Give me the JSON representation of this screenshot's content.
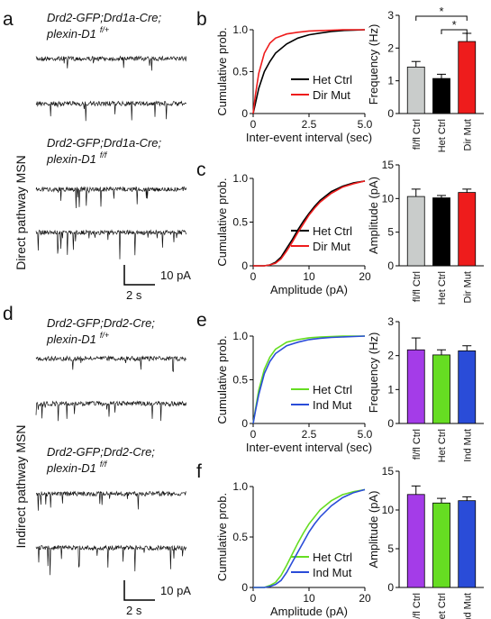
{
  "panel_letters": {
    "a": "a",
    "b": "b",
    "c": "c",
    "d": "d",
    "e": "e",
    "f": "f"
  },
  "side_labels": {
    "top": "Direct pathway MSN",
    "bottom": "Indirect pathway MSN"
  },
  "genotypes": {
    "a1_line1": "Drd2-GFP;Drd1a-Cre;",
    "a1_line2": "plexin-D1",
    "a1_sup": "f/+",
    "a2_line1": "Drd2-GFP;Drd1a-Cre;",
    "a2_line2": "plexin-D1",
    "a2_sup": "f/f",
    "d1_line1": "Drd2-GFP;Drd2-Cre;",
    "d1_line2": "plexin-D1",
    "d1_sup": "f/+",
    "d2_line1": "Drd2-GFP;Drd2-Cre;",
    "d2_line2": "plexin-D1",
    "d2_sup": "f/f"
  },
  "scalebars": {
    "amp": "10 pA",
    "time": "2 s"
  },
  "colors": {
    "het_ctrl_top": "#000000",
    "dir_mut": "#ee1c1c",
    "het_ctrl_bottom": "#66dd22",
    "ind_mut": "#2a4cd8",
    "flfl_top": "#c9cccb",
    "flfl_bottom": "#a43ce8"
  },
  "chart_data": [
    {
      "id": "b_cdf",
      "type": "line",
      "ylabel": "Cumulative prob.",
      "xlabel": "Inter-event interval (sec)",
      "xlim": [
        0,
        5
      ],
      "ylim": [
        0,
        1
      ],
      "xticks": [
        "0",
        "2.5",
        "5.0"
      ],
      "yticks": [
        "0",
        "0.5",
        "1.0"
      ],
      "series": [
        {
          "name": "Het Ctrl",
          "color": "#000000",
          "x": [
            0,
            0.1,
            0.25,
            0.5,
            0.75,
            1,
            1.5,
            2,
            2.5,
            3,
            3.5,
            4,
            4.5,
            5
          ],
          "y": [
            0,
            0.12,
            0.3,
            0.5,
            0.62,
            0.72,
            0.83,
            0.9,
            0.94,
            0.96,
            0.98,
            0.99,
            0.995,
            1
          ]
        },
        {
          "name": "Dir Mut",
          "color": "#ee1c1c",
          "x": [
            0,
            0.1,
            0.25,
            0.5,
            0.75,
            1,
            1.5,
            2,
            2.5,
            3,
            3.5,
            4,
            4.5,
            5
          ],
          "y": [
            0,
            0.22,
            0.48,
            0.72,
            0.84,
            0.9,
            0.95,
            0.97,
            0.985,
            0.99,
            0.995,
            1,
            1,
            1
          ]
        }
      ]
    },
    {
      "id": "b_bar",
      "type": "bar",
      "ylabel": "Frequency (Hz)",
      "ylim": [
        0,
        3
      ],
      "yticks": [
        "0",
        "1",
        "2",
        "3"
      ],
      "categories": [
        "fl/fl Ctrl",
        "Het Ctrl",
        "Dir Mut"
      ],
      "values": [
        1.42,
        1.07,
        2.2
      ],
      "errors": [
        0.17,
        0.13,
        0.25
      ],
      "colors": [
        "#c9cccb",
        "#000000",
        "#ee1c1c"
      ],
      "significance": [
        "*",
        "*"
      ]
    },
    {
      "id": "c_cdf",
      "type": "line",
      "ylabel": "Cumulative prob.",
      "xlabel": "Amplitude (pA)",
      "xlim": [
        0,
        20
      ],
      "ylim": [
        0,
        1
      ],
      "xticks": [
        "0",
        "10",
        "20"
      ],
      "yticks": [
        "0",
        "0.5",
        "1.0"
      ],
      "series": [
        {
          "name": "Het Ctrl",
          "color": "#000000",
          "x": [
            0,
            2,
            3,
            4,
            5,
            6,
            7,
            8,
            9,
            10,
            11,
            12,
            14,
            16,
            18,
            20
          ],
          "y": [
            0,
            0,
            0.01,
            0.04,
            0.1,
            0.2,
            0.3,
            0.41,
            0.51,
            0.6,
            0.68,
            0.75,
            0.85,
            0.91,
            0.95,
            0.97
          ]
        },
        {
          "name": "Dir Mut",
          "color": "#ee1c1c",
          "x": [
            0,
            2,
            3,
            4,
            5,
            6,
            7,
            8,
            9,
            10,
            11,
            12,
            14,
            16,
            18,
            20
          ],
          "y": [
            0,
            0,
            0.01,
            0.03,
            0.08,
            0.17,
            0.27,
            0.38,
            0.48,
            0.58,
            0.66,
            0.73,
            0.83,
            0.9,
            0.94,
            0.97
          ]
        }
      ]
    },
    {
      "id": "c_bar",
      "type": "bar",
      "ylabel": "Amplitude (pA)",
      "ylim": [
        0,
        15
      ],
      "yticks": [
        "0",
        "5",
        "10",
        "15"
      ],
      "categories": [
        "fl/fl Ctrl",
        "Het Ctrl",
        "Dir Mut"
      ],
      "values": [
        10.3,
        10.1,
        10.9
      ],
      "errors": [
        1.1,
        0.35,
        0.5
      ],
      "colors": [
        "#c9cccb",
        "#000000",
        "#ee1c1c"
      ]
    },
    {
      "id": "e_cdf",
      "type": "line",
      "ylabel": "Cumulative prob.",
      "xlabel": "Inter-event interval (sec)",
      "xlim": [
        0,
        5
      ],
      "ylim": [
        0,
        1
      ],
      "xticks": [
        "0",
        "2.5",
        "5.0"
      ],
      "yticks": [
        "0",
        "0.5",
        "1.0"
      ],
      "series": [
        {
          "name": "Het Ctrl",
          "color": "#66dd22",
          "x": [
            0,
            0.1,
            0.25,
            0.5,
            0.75,
            1,
            1.5,
            2,
            2.5,
            3,
            3.5,
            4,
            4.5,
            5
          ],
          "y": [
            0,
            0.16,
            0.38,
            0.62,
            0.76,
            0.85,
            0.93,
            0.96,
            0.98,
            0.99,
            0.995,
            1,
            1,
            1
          ]
        },
        {
          "name": "Ind Mut",
          "color": "#2a4cd8",
          "x": [
            0,
            0.1,
            0.25,
            0.5,
            0.75,
            1,
            1.5,
            2,
            2.5,
            3,
            3.5,
            4,
            4.5,
            5
          ],
          "y": [
            0,
            0.14,
            0.33,
            0.57,
            0.71,
            0.8,
            0.89,
            0.93,
            0.96,
            0.975,
            0.985,
            0.99,
            0.995,
            1
          ]
        }
      ]
    },
    {
      "id": "e_bar",
      "type": "bar",
      "ylabel": "Frequency (Hz)",
      "ylim": [
        0,
        3
      ],
      "yticks": [
        "0",
        "1",
        "2",
        "3"
      ],
      "categories": [
        "fl/fl Ctrl",
        "Het Ctrl",
        "Ind Mut"
      ],
      "values": [
        2.17,
        2.02,
        2.14
      ],
      "errors": [
        0.35,
        0.15,
        0.15
      ],
      "colors": [
        "#a43ce8",
        "#66dd22",
        "#2a4cd8"
      ]
    },
    {
      "id": "f_cdf",
      "type": "line",
      "ylabel": "Cumulative prob.",
      "xlabel": "Amplitude (pA)",
      "xlim": [
        0,
        20
      ],
      "ylim": [
        0,
        1
      ],
      "xticks": [
        "0",
        "10",
        "20"
      ],
      "yticks": [
        "0",
        "0.5",
        "1.0"
      ],
      "series": [
        {
          "name": "Het Ctrl",
          "color": "#66dd22",
          "x": [
            0,
            2,
            3,
            4,
            5,
            6,
            7,
            8,
            9,
            10,
            11,
            12,
            14,
            16,
            18,
            20
          ],
          "y": [
            0,
            0,
            0.02,
            0.05,
            0.12,
            0.22,
            0.33,
            0.44,
            0.54,
            0.63,
            0.7,
            0.77,
            0.86,
            0.92,
            0.95,
            0.97
          ]
        },
        {
          "name": "Ind Mut",
          "color": "#2a4cd8",
          "x": [
            0,
            2,
            3,
            4,
            5,
            6,
            7,
            8,
            9,
            10,
            11,
            12,
            14,
            16,
            18,
            20
          ],
          "y": [
            0,
            0,
            0.01,
            0.03,
            0.07,
            0.15,
            0.25,
            0.35,
            0.45,
            0.55,
            0.63,
            0.7,
            0.81,
            0.89,
            0.94,
            0.97
          ]
        }
      ]
    },
    {
      "id": "f_bar",
      "type": "bar",
      "ylabel": "Amplitude (pA)",
      "ylim": [
        0,
        15
      ],
      "yticks": [
        "0",
        "5",
        "10",
        "15"
      ],
      "categories": [
        "fl/fl Ctrl",
        "Het Ctrl",
        "Ind Mut"
      ],
      "values": [
        12.0,
        10.9,
        11.2
      ],
      "errors": [
        1.1,
        0.6,
        0.5
      ],
      "colors": [
        "#a43ce8",
        "#66dd22",
        "#2a4cd8"
      ]
    }
  ]
}
